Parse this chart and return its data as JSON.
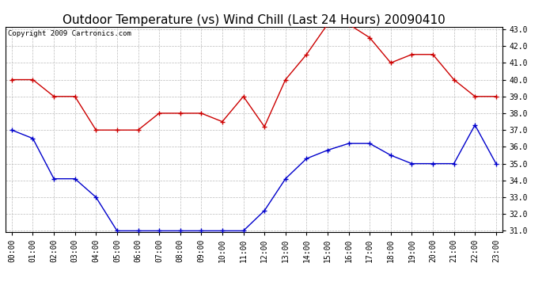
{
  "title": "Outdoor Temperature (vs) Wind Chill (Last 24 Hours) 20090410",
  "copyright": "Copyright 2009 Cartronics.com",
  "hours": [
    "00:00",
    "01:00",
    "02:00",
    "03:00",
    "04:00",
    "05:00",
    "06:00",
    "07:00",
    "08:00",
    "09:00",
    "10:00",
    "11:00",
    "12:00",
    "13:00",
    "14:00",
    "15:00",
    "16:00",
    "17:00",
    "18:00",
    "19:00",
    "20:00",
    "21:00",
    "22:00",
    "23:00"
  ],
  "temp": [
    40.0,
    40.0,
    39.0,
    39.0,
    37.0,
    37.0,
    37.0,
    38.0,
    38.0,
    38.0,
    37.5,
    39.0,
    37.2,
    40.0,
    41.5,
    43.3,
    43.3,
    42.5,
    41.0,
    41.5,
    41.5,
    40.0,
    39.0,
    39.0
  ],
  "windchill": [
    37.0,
    36.5,
    34.1,
    34.1,
    33.0,
    31.0,
    31.0,
    31.0,
    31.0,
    31.0,
    31.0,
    31.0,
    32.2,
    34.1,
    35.3,
    35.8,
    36.2,
    36.2,
    35.5,
    35.0,
    35.0,
    35.0,
    37.3,
    35.0
  ],
  "temp_color": "#cc0000",
  "windchill_color": "#0000cc",
  "ylim_min": 31.0,
  "ylim_max": 43.0,
  "yticks": [
    31.0,
    32.0,
    33.0,
    34.0,
    35.0,
    36.0,
    37.0,
    38.0,
    39.0,
    40.0,
    41.0,
    42.0,
    43.0
  ],
  "bg_color": "#ffffff",
  "grid_color": "#bbbbbb",
  "title_fontsize": 11,
  "tick_fontsize": 7,
  "copyright_fontsize": 6.5
}
